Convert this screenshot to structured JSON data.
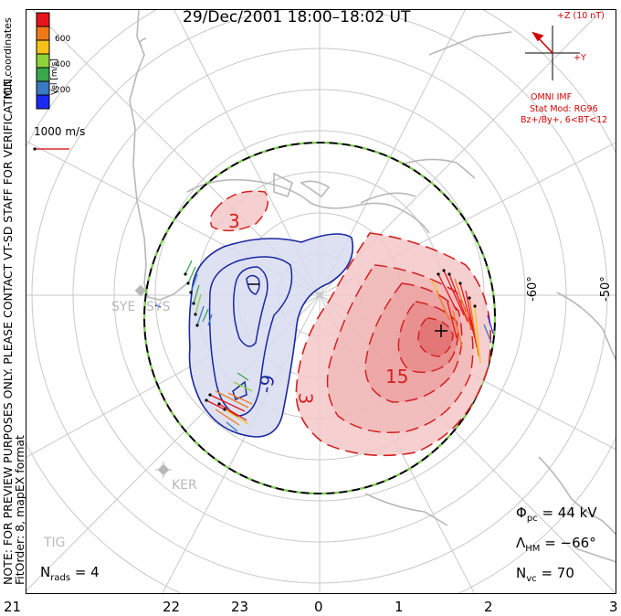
{
  "title": "29/Dec/2001 18:00–18:02 UT",
  "side_note": {
    "line1": "NOTE: FOR PREVIEW PURPOSES ONLY. PLEASE CONTACT VT-SD STAFF FOR VERIFICATION.",
    "line2": "FitOrder: 8, mapEX format"
  },
  "coords_label": "MLT coordinates",
  "colorbar": {
    "label": "Vel [m/s]",
    "ticks": [
      "600",
      "400",
      "200"
    ],
    "colors": [
      "#e8141c",
      "#f07a1a",
      "#f5c11a",
      "#8ed23a",
      "#3aa84a",
      "#3a7ac0",
      "#1a2af0"
    ]
  },
  "velocity_scale": "1000 m/s",
  "imf": {
    "z_label": "+Z (10 nT)",
    "y_label": "+Y",
    "source": "OMNI IMF",
    "model": "Stat Mod: RG96",
    "condition": "Bz+/By+, 6<BT<12",
    "color": "#d40000"
  },
  "mlt_labels": [
    "21",
    "22",
    "23",
    "0",
    "1",
    "2",
    "3"
  ],
  "lat_labels": [
    "-60°",
    "-50°"
  ],
  "stations": [
    "SYE",
    "SYS",
    "KER",
    "TIG"
  ],
  "contour_labels": [
    "3",
    "-9",
    "15",
    "3"
  ],
  "stats": {
    "n_rads_label": "N",
    "n_rads_sub": "rads",
    "n_rads_value": "= 4",
    "phi_label": "Φ",
    "phi_sub": "pc",
    "phi_value": "= 44 kV",
    "lambda_label": "Λ",
    "lambda_sub": "HM",
    "lambda_value": "= −66°",
    "nvc_label": "N",
    "nvc_sub": "vc",
    "nvc_value": "= 70"
  },
  "colors": {
    "positive_cell": "#d42020",
    "negative_cell": "#1a28a0",
    "continent": "#b8b8b8"
  }
}
